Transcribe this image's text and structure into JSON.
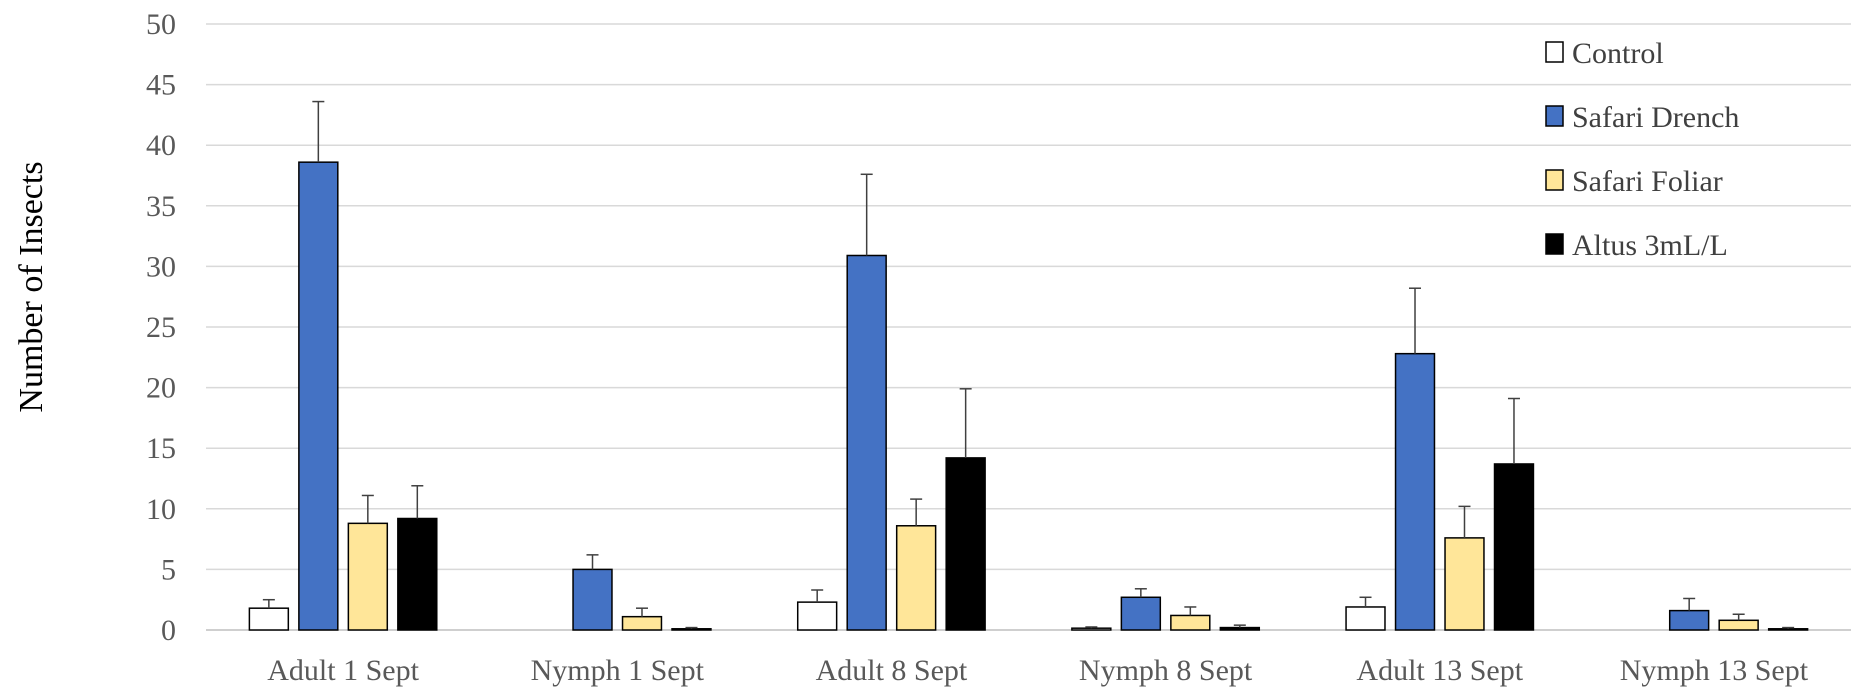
{
  "chart_data": {
    "type": "bar",
    "ylabel": "Number of Insects",
    "xlabel": "",
    "ylim": [
      0,
      50
    ],
    "yticks": [
      0,
      5,
      10,
      15,
      20,
      25,
      30,
      35,
      40,
      45,
      50
    ],
    "grid": true,
    "legend_position": "top-right",
    "categories": [
      "Adult 1 Sept",
      "Nymph 1 Sept",
      "Adult 8 Sept",
      "Nymph 8 Sept",
      "Adult 13 Sept",
      "Nymph 13 Sept"
    ],
    "series": [
      {
        "name": "Control",
        "color": "#ffffff",
        "values": [
          1.8,
          0,
          2.3,
          0.15,
          1.9,
          0
        ],
        "errors": [
          0.7,
          0,
          1.0,
          0.1,
          0.8,
          0
        ]
      },
      {
        "name": "Safari Drench",
        "color": "#4472c4",
        "values": [
          38.6,
          5.0,
          30.9,
          2.7,
          22.8,
          1.6
        ],
        "errors": [
          5.0,
          1.2,
          6.7,
          0.7,
          5.4,
          1.0
        ]
      },
      {
        "name": "Safari Foliar",
        "color": "#ffe699",
        "values": [
          8.8,
          1.1,
          8.6,
          1.2,
          7.6,
          0.8
        ],
        "errors": [
          2.3,
          0.7,
          2.2,
          0.7,
          2.6,
          0.5
        ]
      },
      {
        "name": "Altus 3mL/L",
        "color": "#000000",
        "values": [
          9.2,
          0.1,
          14.2,
          0.2,
          13.7,
          0.1
        ],
        "errors": [
          2.7,
          0.1,
          5.7,
          0.2,
          5.4,
          0.1
        ]
      }
    ]
  }
}
